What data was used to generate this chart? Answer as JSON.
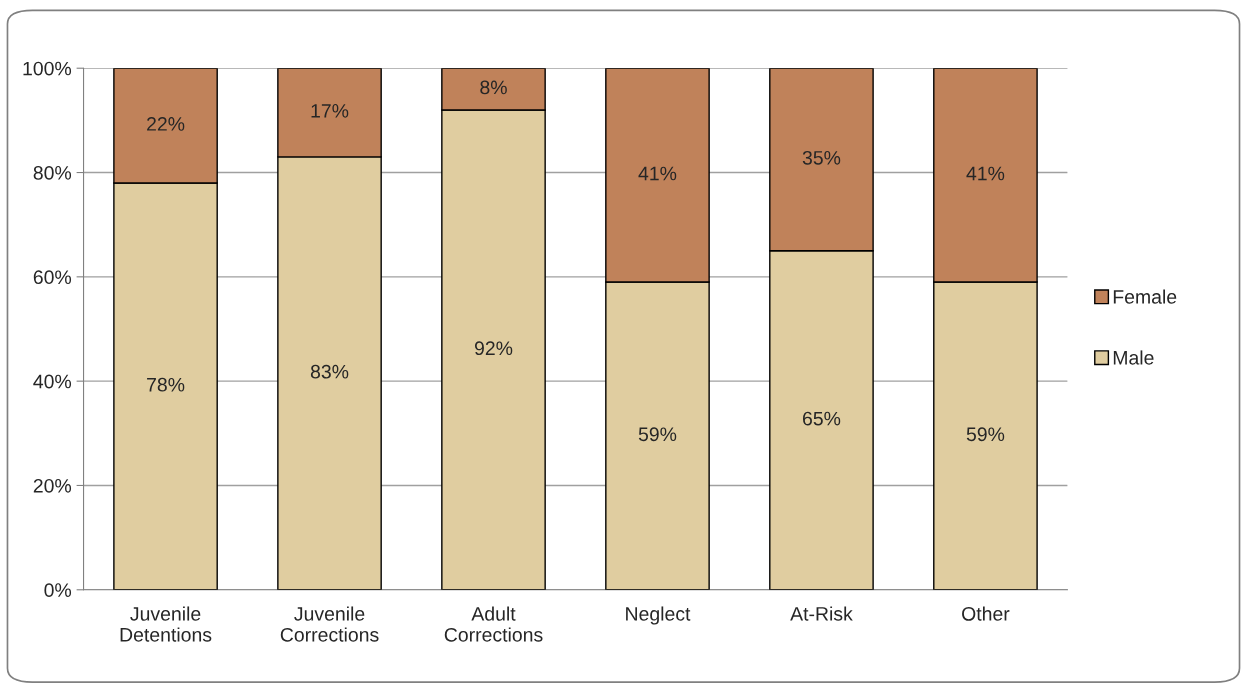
{
  "chart_data": {
    "type": "bar",
    "stacked": true,
    "categories": [
      "Juvenile\nDetentions",
      "Juvenile\nCorrections",
      "Adult\nCorrections",
      "Neglect",
      "At-Risk",
      "Other"
    ],
    "series": [
      {
        "name": "Male",
        "color": "#e0cda0",
        "values": [
          78,
          83,
          92,
          59,
          65,
          59
        ],
        "value_labels": [
          "78%",
          "83%",
          "92%",
          "59%",
          "65%",
          "59%"
        ]
      },
      {
        "name": "Female",
        "color": "#c0825a",
        "values": [
          22,
          17,
          8,
          41,
          35,
          41
        ],
        "value_labels": [
          "22%",
          "17%",
          "8%",
          "41%",
          "35%",
          "41%"
        ]
      }
    ],
    "ylim": [
      0,
      100
    ],
    "yticks": [
      {
        "value": 0,
        "label": "0%"
      },
      {
        "value": 20,
        "label": "20%"
      },
      {
        "value": 40,
        "label": "40%"
      },
      {
        "value": 60,
        "label": "60%"
      },
      {
        "value": 80,
        "label": "80%"
      },
      {
        "value": 100,
        "label": "100%"
      }
    ],
    "grid": "y",
    "legend": "right"
  }
}
